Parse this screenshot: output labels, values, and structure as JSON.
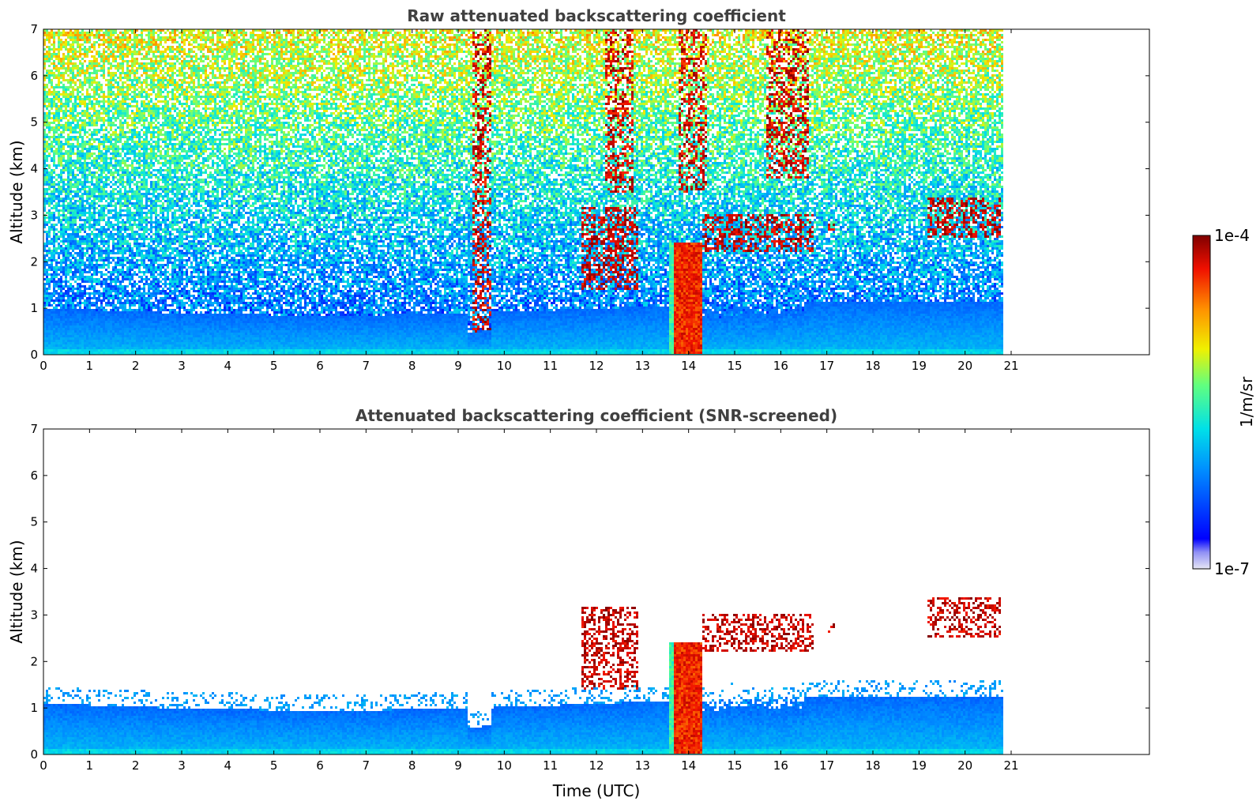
{
  "chart_data": [
    {
      "type": "heatmap",
      "title": "Raw attenuated backscattering coefficient",
      "xlabel": "",
      "ylabel": "Altitude (km)",
      "xlim": [
        0,
        24
      ],
      "ylim": [
        0,
        7
      ],
      "xticks": [
        0,
        1,
        2,
        3,
        4,
        5,
        6,
        7,
        8,
        9,
        10,
        11,
        12,
        13,
        14,
        15,
        16,
        17,
        18,
        19,
        20,
        21
      ],
      "yticks": [
        0,
        1,
        2,
        3,
        4,
        5,
        6,
        7
      ],
      "data_end_time": 20.8,
      "noise_field": true,
      "features": [
        {
          "kind": "boundary_layer",
          "x": [
            0,
            20.8
          ],
          "y": [
            0,
            1.0
          ]
        },
        {
          "kind": "cloud",
          "x": [
            11.7,
            12.9
          ],
          "y": [
            1.4,
            3.2
          ]
        },
        {
          "kind": "cloud",
          "x": [
            13.6,
            14.3
          ],
          "y": [
            0,
            2.4
          ]
        },
        {
          "kind": "cloud",
          "x": [
            14.3,
            16.7
          ],
          "y": [
            2.2,
            3.0
          ]
        },
        {
          "kind": "cloud",
          "x": [
            17.0,
            17.2
          ],
          "y": [
            2.6,
            2.8
          ]
        },
        {
          "kind": "cloud",
          "x": [
            19.2,
            20.8
          ],
          "y": [
            2.5,
            3.4
          ]
        }
      ]
    },
    {
      "type": "heatmap",
      "title": "Attenuated backscattering coefficient (SNR-screened)",
      "xlabel": "Time (UTC)",
      "ylabel": "Altitude (km)",
      "xlim": [
        0,
        24
      ],
      "ylim": [
        0,
        7
      ],
      "xticks": [
        0,
        1,
        2,
        3,
        4,
        5,
        6,
        7,
        8,
        9,
        10,
        11,
        12,
        13,
        14,
        15,
        16,
        17,
        18,
        19,
        20,
        21
      ],
      "yticks": [
        0,
        1,
        2,
        3,
        4,
        5,
        6,
        7
      ],
      "data_end_time": 20.8,
      "noise_field": false,
      "features": [
        {
          "kind": "boundary_layer",
          "x": [
            0,
            20.8
          ],
          "y": [
            0,
            1.1
          ]
        },
        {
          "kind": "cloud",
          "x": [
            11.7,
            12.9
          ],
          "y": [
            1.4,
            3.2
          ]
        },
        {
          "kind": "cloud",
          "x": [
            13.6,
            14.3
          ],
          "y": [
            0,
            2.4
          ]
        },
        {
          "kind": "cloud",
          "x": [
            14.3,
            16.7
          ],
          "y": [
            2.2,
            3.0
          ]
        },
        {
          "kind": "cloud",
          "x": [
            17.0,
            17.2
          ],
          "y": [
            2.6,
            2.8
          ]
        },
        {
          "kind": "cloud",
          "x": [
            19.2,
            20.8
          ],
          "y": [
            2.5,
            3.4
          ]
        }
      ]
    }
  ],
  "colorbar": {
    "max_label": "1e-4",
    "min_label": "1e-7",
    "unit_label": "1/m/sr",
    "scale": "log",
    "colormap": "jet"
  }
}
